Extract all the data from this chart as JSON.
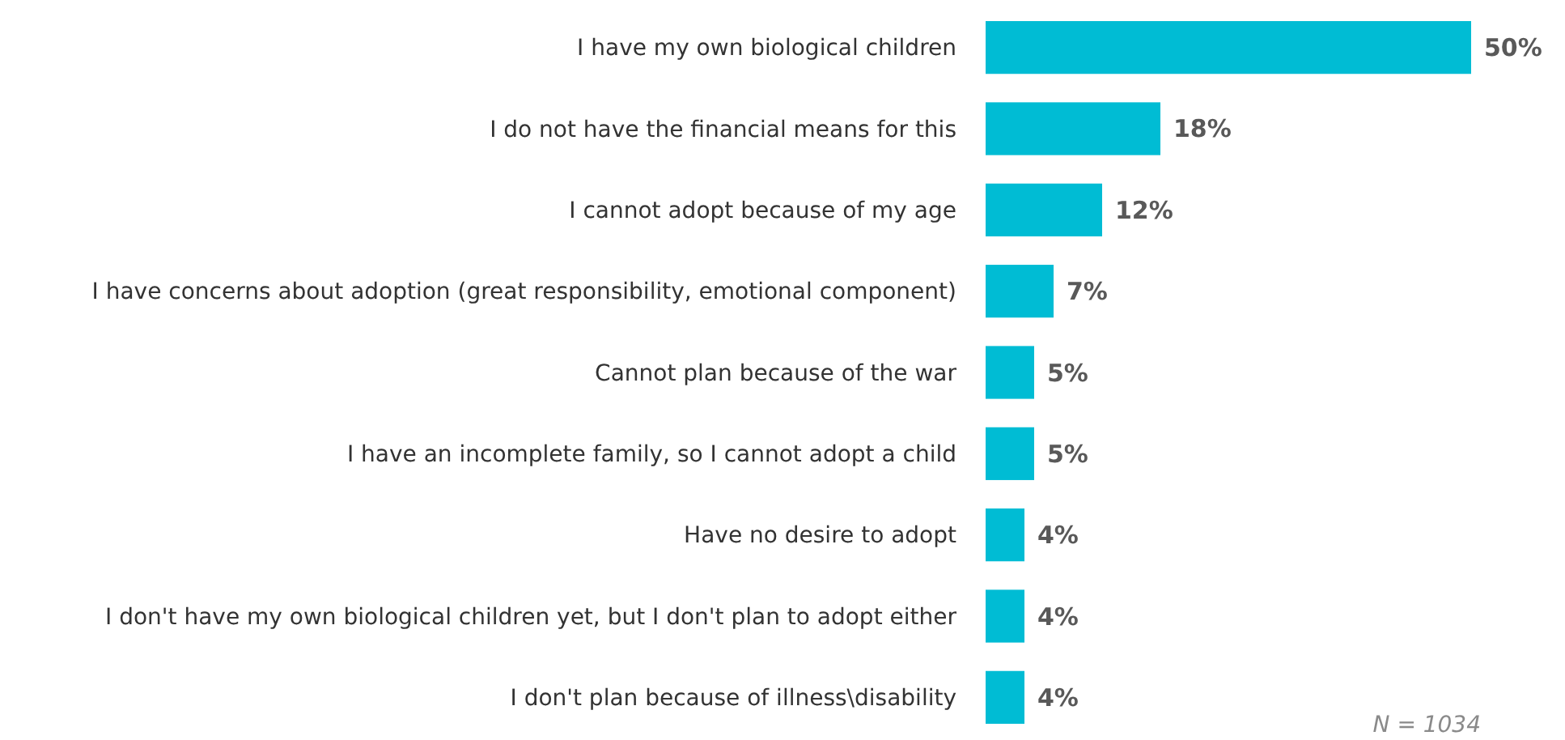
{
  "chart_data": {
    "type": "bar",
    "orientation": "horizontal",
    "categories": [
      "I have my own biological children",
      "I do not have the financial means for this",
      "I cannot adopt because of my age",
      "I have concerns about adoption (great responsibility, emotional component)",
      "Cannot plan because of the war",
      "I have an incomplete family, so I cannot adopt a child",
      "Have no desire to adopt",
      "I don't have my own biological children yet, but I don't plan to adopt either",
      "I don't plan because of illness\\disability"
    ],
    "values": [
      50,
      18,
      12,
      7,
      5,
      5,
      4,
      4,
      4
    ],
    "value_labels": [
      "50%",
      "18%",
      "12%",
      "7%",
      "5%",
      "5%",
      "4%",
      "4%",
      "4%"
    ],
    "color": "#00bcd4",
    "annotations": [
      "N = 1034"
    ]
  }
}
